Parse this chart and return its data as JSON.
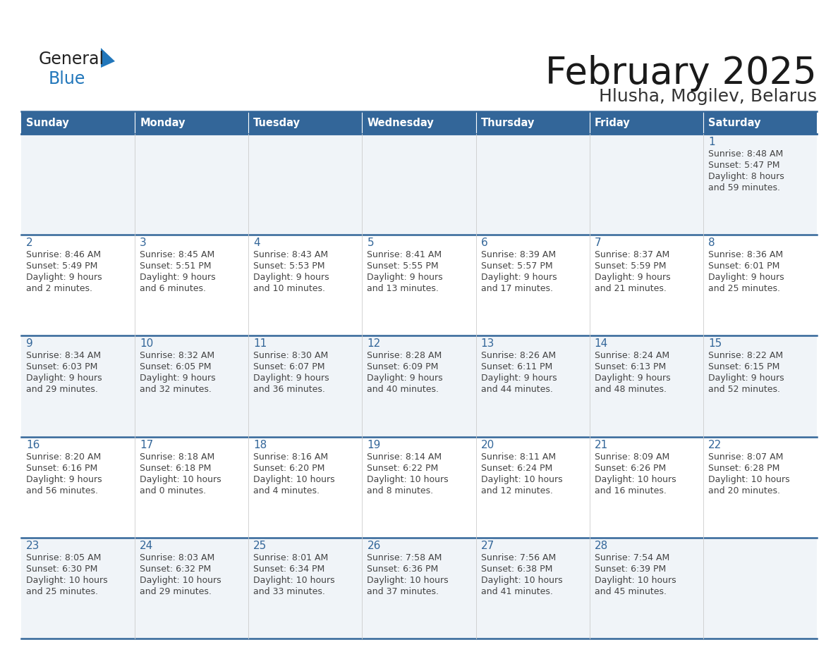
{
  "title": "February 2025",
  "subtitle": "Hlusha, Mogilev, Belarus",
  "days_of_week": [
    "Sunday",
    "Monday",
    "Tuesday",
    "Wednesday",
    "Thursday",
    "Friday",
    "Saturday"
  ],
  "header_bg": "#336699",
  "header_text": "#ffffff",
  "row_bg_odd": "#f0f4f8",
  "row_bg_even": "#ffffff",
  "border_color": "#336699",
  "title_color": "#1a1a1a",
  "subtitle_color": "#333333",
  "day_number_color": "#336699",
  "cell_text_color": "#444444",
  "logo_black": "#222222",
  "logo_blue": "#2277bb",
  "triangle_color": "#2277bb",
  "calendar_data": [
    [
      {
        "day": "",
        "sunrise": "",
        "sunset": "",
        "daylight": ""
      },
      {
        "day": "",
        "sunrise": "",
        "sunset": "",
        "daylight": ""
      },
      {
        "day": "",
        "sunrise": "",
        "sunset": "",
        "daylight": ""
      },
      {
        "day": "",
        "sunrise": "",
        "sunset": "",
        "daylight": ""
      },
      {
        "day": "",
        "sunrise": "",
        "sunset": "",
        "daylight": ""
      },
      {
        "day": "",
        "sunrise": "",
        "sunset": "",
        "daylight": ""
      },
      {
        "day": "1",
        "sunrise": "8:48 AM",
        "sunset": "5:47 PM",
        "daylight": "8 hours\nand 59 minutes."
      }
    ],
    [
      {
        "day": "2",
        "sunrise": "8:46 AM",
        "sunset": "5:49 PM",
        "daylight": "9 hours\nand 2 minutes."
      },
      {
        "day": "3",
        "sunrise": "8:45 AM",
        "sunset": "5:51 PM",
        "daylight": "9 hours\nand 6 minutes."
      },
      {
        "day": "4",
        "sunrise": "8:43 AM",
        "sunset": "5:53 PM",
        "daylight": "9 hours\nand 10 minutes."
      },
      {
        "day": "5",
        "sunrise": "8:41 AM",
        "sunset": "5:55 PM",
        "daylight": "9 hours\nand 13 minutes."
      },
      {
        "day": "6",
        "sunrise": "8:39 AM",
        "sunset": "5:57 PM",
        "daylight": "9 hours\nand 17 minutes."
      },
      {
        "day": "7",
        "sunrise": "8:37 AM",
        "sunset": "5:59 PM",
        "daylight": "9 hours\nand 21 minutes."
      },
      {
        "day": "8",
        "sunrise": "8:36 AM",
        "sunset": "6:01 PM",
        "daylight": "9 hours\nand 25 minutes."
      }
    ],
    [
      {
        "day": "9",
        "sunrise": "8:34 AM",
        "sunset": "6:03 PM",
        "daylight": "9 hours\nand 29 minutes."
      },
      {
        "day": "10",
        "sunrise": "8:32 AM",
        "sunset": "6:05 PM",
        "daylight": "9 hours\nand 32 minutes."
      },
      {
        "day": "11",
        "sunrise": "8:30 AM",
        "sunset": "6:07 PM",
        "daylight": "9 hours\nand 36 minutes."
      },
      {
        "day": "12",
        "sunrise": "8:28 AM",
        "sunset": "6:09 PM",
        "daylight": "9 hours\nand 40 minutes."
      },
      {
        "day": "13",
        "sunrise": "8:26 AM",
        "sunset": "6:11 PM",
        "daylight": "9 hours\nand 44 minutes."
      },
      {
        "day": "14",
        "sunrise": "8:24 AM",
        "sunset": "6:13 PM",
        "daylight": "9 hours\nand 48 minutes."
      },
      {
        "day": "15",
        "sunrise": "8:22 AM",
        "sunset": "6:15 PM",
        "daylight": "9 hours\nand 52 minutes."
      }
    ],
    [
      {
        "day": "16",
        "sunrise": "8:20 AM",
        "sunset": "6:16 PM",
        "daylight": "9 hours\nand 56 minutes."
      },
      {
        "day": "17",
        "sunrise": "8:18 AM",
        "sunset": "6:18 PM",
        "daylight": "10 hours\nand 0 minutes."
      },
      {
        "day": "18",
        "sunrise": "8:16 AM",
        "sunset": "6:20 PM",
        "daylight": "10 hours\nand 4 minutes."
      },
      {
        "day": "19",
        "sunrise": "8:14 AM",
        "sunset": "6:22 PM",
        "daylight": "10 hours\nand 8 minutes."
      },
      {
        "day": "20",
        "sunrise": "8:11 AM",
        "sunset": "6:24 PM",
        "daylight": "10 hours\nand 12 minutes."
      },
      {
        "day": "21",
        "sunrise": "8:09 AM",
        "sunset": "6:26 PM",
        "daylight": "10 hours\nand 16 minutes."
      },
      {
        "day": "22",
        "sunrise": "8:07 AM",
        "sunset": "6:28 PM",
        "daylight": "10 hours\nand 20 minutes."
      }
    ],
    [
      {
        "day": "23",
        "sunrise": "8:05 AM",
        "sunset": "6:30 PM",
        "daylight": "10 hours\nand 25 minutes."
      },
      {
        "day": "24",
        "sunrise": "8:03 AM",
        "sunset": "6:32 PM",
        "daylight": "10 hours\nand 29 minutes."
      },
      {
        "day": "25",
        "sunrise": "8:01 AM",
        "sunset": "6:34 PM",
        "daylight": "10 hours\nand 33 minutes."
      },
      {
        "day": "26",
        "sunrise": "7:58 AM",
        "sunset": "6:36 PM",
        "daylight": "10 hours\nand 37 minutes."
      },
      {
        "day": "27",
        "sunrise": "7:56 AM",
        "sunset": "6:38 PM",
        "daylight": "10 hours\nand 41 minutes."
      },
      {
        "day": "28",
        "sunrise": "7:54 AM",
        "sunset": "6:39 PM",
        "daylight": "10 hours\nand 45 minutes."
      },
      {
        "day": "",
        "sunrise": "",
        "sunset": "",
        "daylight": ""
      }
    ]
  ]
}
